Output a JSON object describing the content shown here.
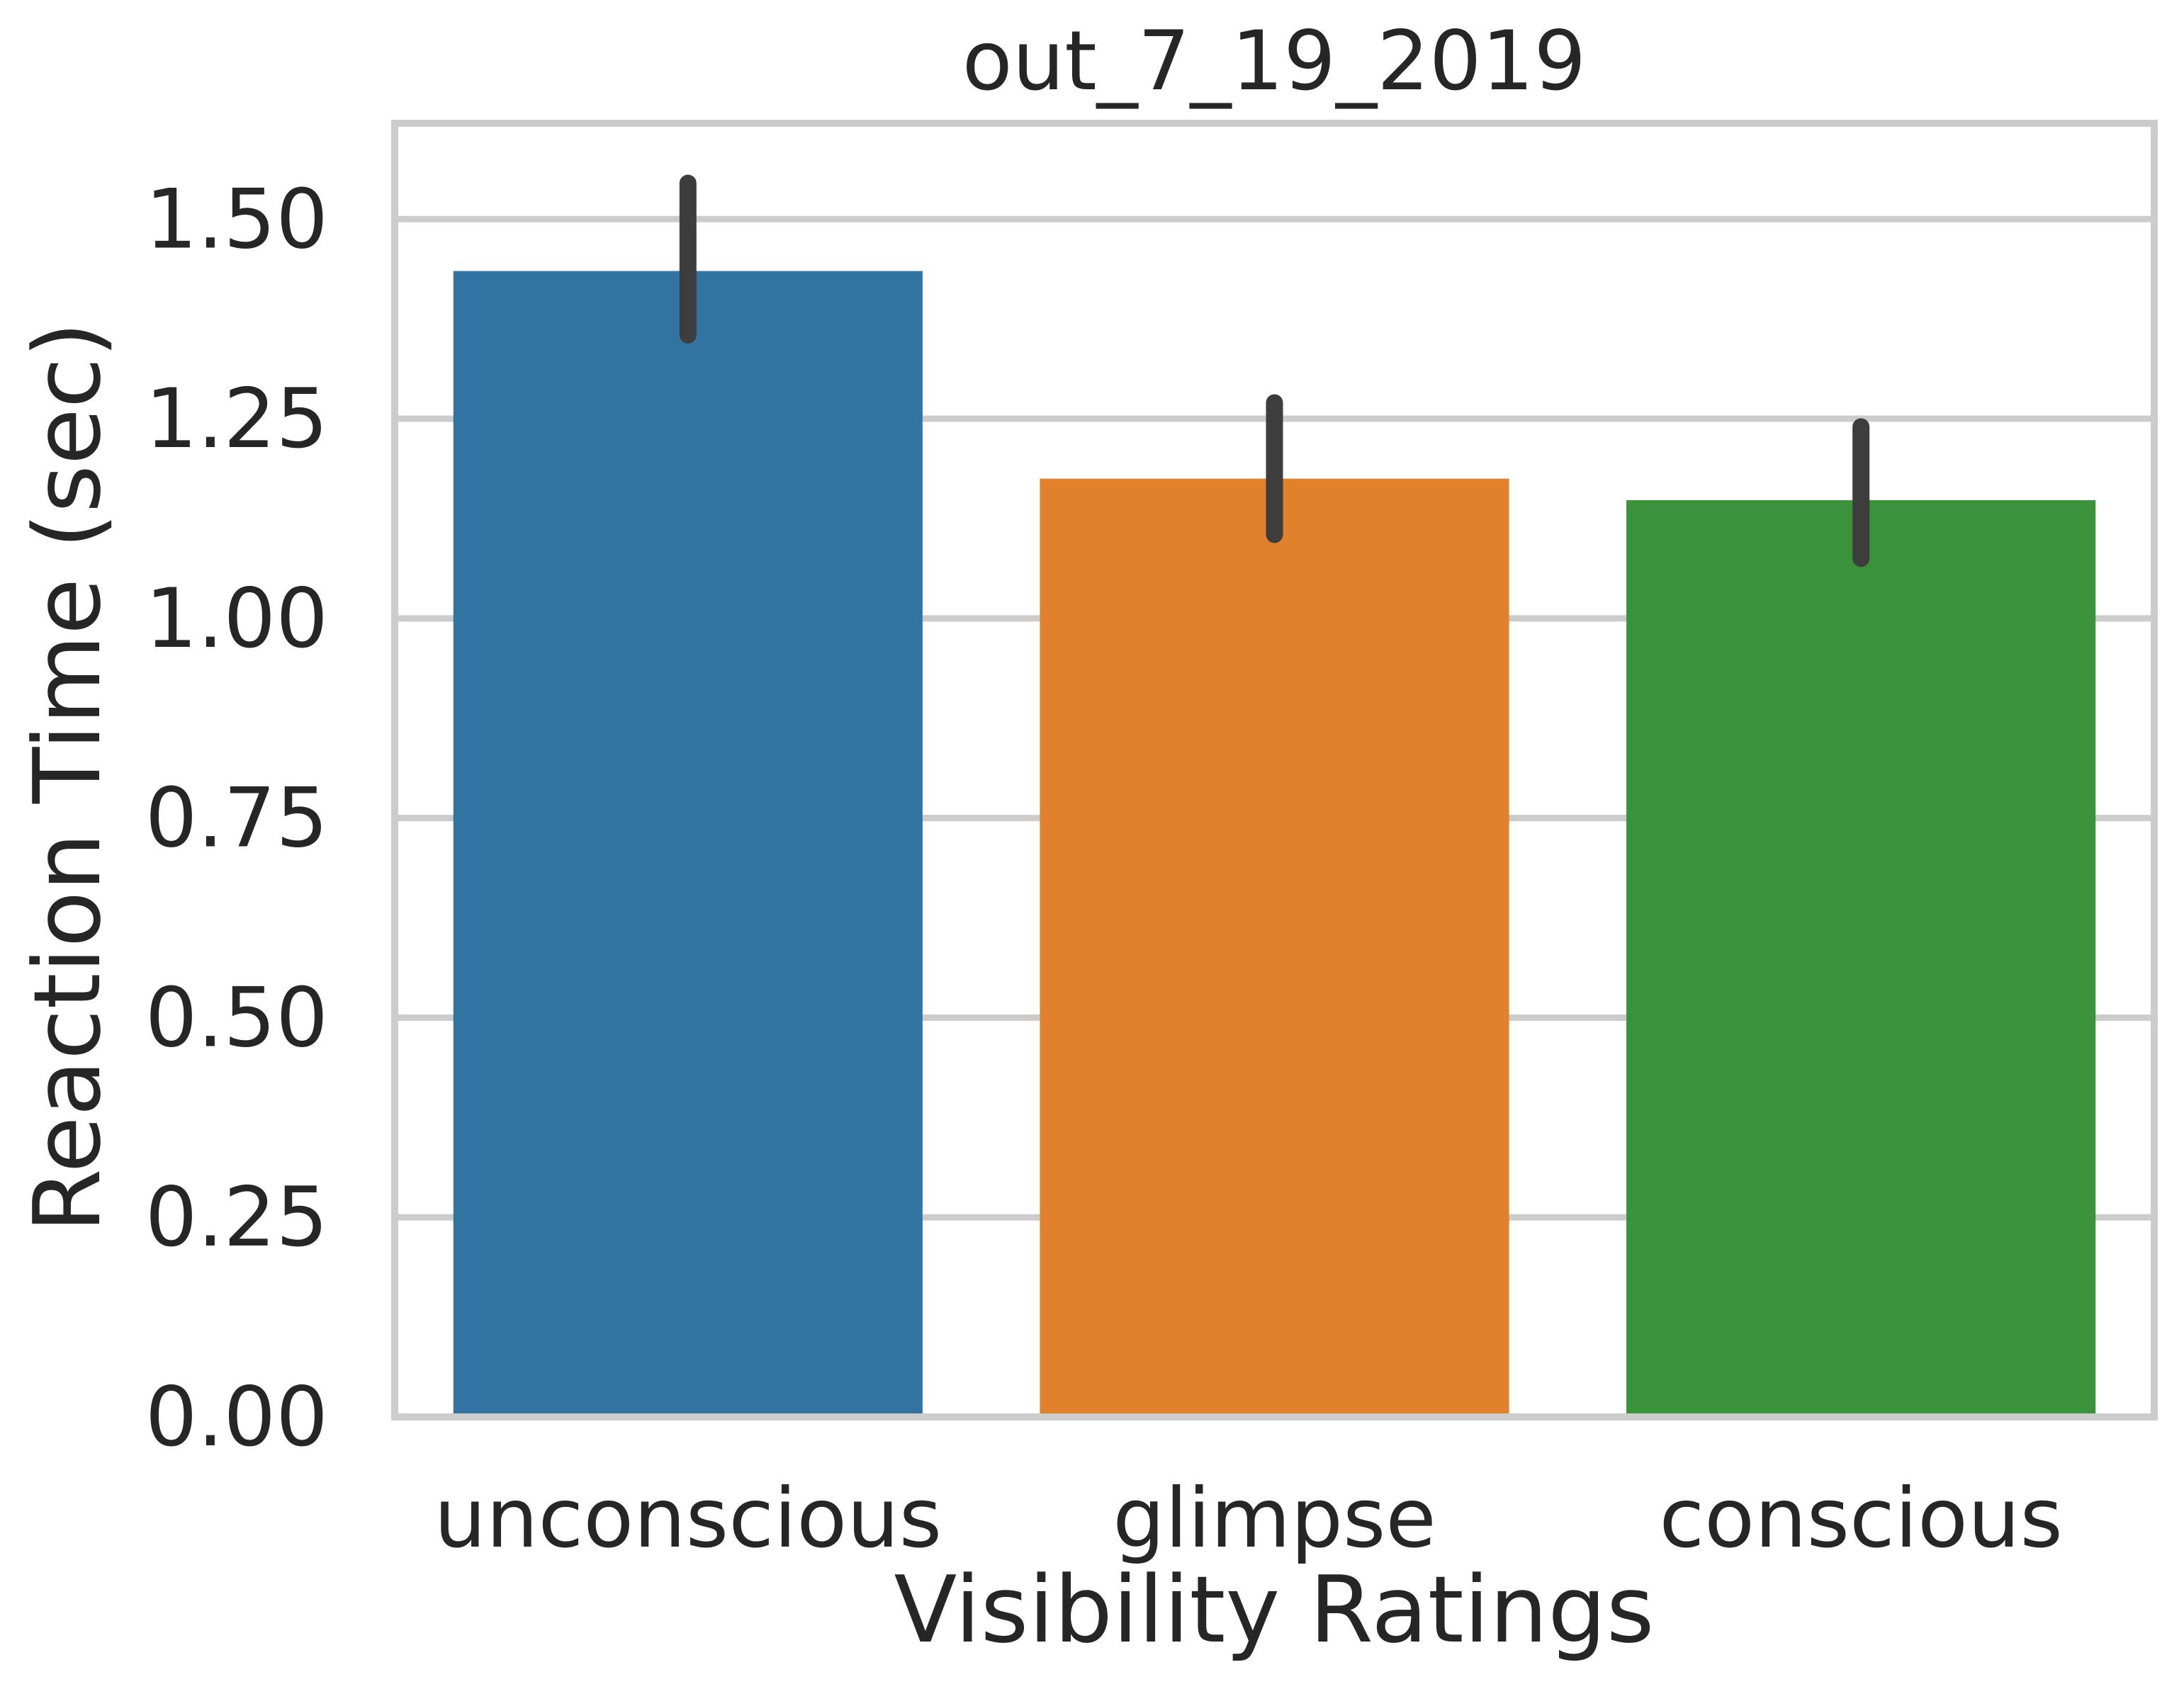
{
  "chart_data": {
    "type": "bar",
    "title": "out_7_19_2019",
    "xlabel": "Visibility Ratings",
    "ylabel": "Reaction Time (sec)",
    "categories": [
      "unconscious",
      "glimpse",
      "conscious"
    ],
    "values": [
      1.435,
      1.175,
      1.148
    ],
    "error_bars": [
      {
        "low": 1.355,
        "high": 1.545
      },
      {
        "low": 1.105,
        "high": 1.27
      },
      {
        "low": 1.075,
        "high": 1.24
      }
    ],
    "colors": [
      "#3274a1",
      "#e1812c",
      "#3a923a"
    ],
    "ylim": [
      0,
      1.62
    ],
    "yticks": [
      0,
      0.25,
      0.5,
      0.75,
      1.0,
      1.25,
      1.5
    ],
    "ytick_labels": [
      "0.00",
      "0.25",
      "0.50",
      "0.75",
      "1.00",
      "1.25",
      "1.50"
    ],
    "grid": "horizontal",
    "legend": false
  }
}
